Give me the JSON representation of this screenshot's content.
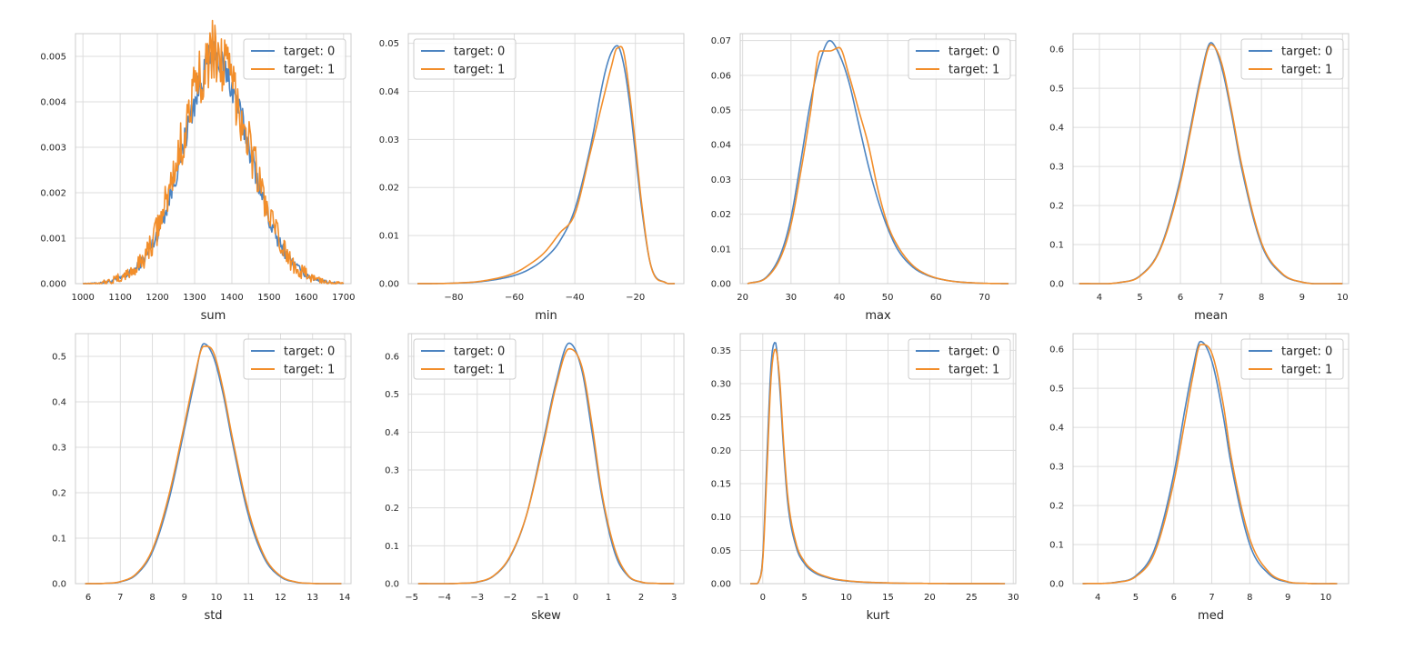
{
  "colors": {
    "target_0": "#4c84c1",
    "target_1": "#f28e2b",
    "grid": "#dddddd",
    "frame": "#cccccc"
  },
  "chart_data": [
    {
      "type": "line",
      "title": "",
      "xlabel": "sum",
      "ylabel": "",
      "grid": true,
      "legend": "upper-right",
      "noisy": true,
      "xlim": [
        980,
        1720
      ],
      "ylim": [
        0,
        0.0055
      ],
      "xticks": [
        1000,
        1100,
        1200,
        1300,
        1400,
        1500,
        1600,
        1700
      ],
      "yticks": [
        0.0,
        0.001,
        0.002,
        0.003,
        0.004,
        0.005
      ],
      "ytick_labels": [
        "0.000",
        "0.001",
        "0.002",
        "0.003",
        "0.004",
        "0.005"
      ],
      "series": [
        {
          "name": "target: 0",
          "x": [
            1000,
            1050,
            1100,
            1150,
            1200,
            1250,
            1300,
            1350,
            1400,
            1450,
            1500,
            1550,
            1600,
            1650,
            1700
          ],
          "y": [
            0,
            2e-05,
            0.00012,
            0.0004,
            0.0011,
            0.0024,
            0.004,
            0.005,
            0.0043,
            0.0029,
            0.0014,
            0.0006,
            0.0002,
            5e-05,
            0
          ]
        },
        {
          "name": "target: 1",
          "x": [
            1000,
            1050,
            1100,
            1150,
            1200,
            1250,
            1300,
            1350,
            1400,
            1450,
            1500,
            1550,
            1600,
            1650,
            1700
          ],
          "y": [
            0,
            2e-05,
            0.00013,
            0.00042,
            0.0012,
            0.0026,
            0.0042,
            0.0051,
            0.0044,
            0.003,
            0.0015,
            0.0006,
            0.0002,
            5e-05,
            0
          ]
        }
      ]
    },
    {
      "type": "line",
      "title": "",
      "xlabel": "min",
      "ylabel": "",
      "grid": true,
      "legend": "upper-left",
      "noisy": false,
      "xlim": [
        -95,
        -4
      ],
      "ylim": [
        0,
        0.052
      ],
      "xticks": [
        -80,
        -60,
        -40,
        -20
      ],
      "yticks": [
        0.0,
        0.01,
        0.02,
        0.03,
        0.04,
        0.05
      ],
      "ytick_labels": [
        "0.00",
        "0.01",
        "0.02",
        "0.03",
        "0.04",
        "0.05"
      ],
      "series": [
        {
          "name": "target: 0",
          "x": [
            -92,
            -80,
            -70,
            -60,
            -55,
            -50,
            -45,
            -40,
            -35,
            -30,
            -28,
            -26,
            -24,
            -22,
            -20,
            -18,
            -15,
            -10,
            -7
          ],
          "y": [
            0,
            0.0001,
            0.0005,
            0.0017,
            0.003,
            0.0052,
            0.0088,
            0.0155,
            0.028,
            0.044,
            0.048,
            0.0495,
            0.046,
            0.038,
            0.027,
            0.016,
            0.004,
            0.0002,
            0
          ]
        },
        {
          "name": "target: 1",
          "x": [
            -92,
            -80,
            -70,
            -60,
            -55,
            -50,
            -45,
            -40,
            -35,
            -30,
            -28,
            -26,
            -24,
            -22,
            -20,
            -18,
            -15,
            -10,
            -7
          ],
          "y": [
            0,
            0.0001,
            0.0006,
            0.0022,
            0.004,
            0.0065,
            0.0105,
            0.0145,
            0.027,
            0.04,
            0.045,
            0.049,
            0.0485,
            0.04,
            0.029,
            0.017,
            0.004,
            0.0002,
            0
          ]
        }
      ]
    },
    {
      "type": "line",
      "title": "",
      "xlabel": "max",
      "ylabel": "",
      "grid": true,
      "legend": "upper-right",
      "noisy": false,
      "xlim": [
        19.5,
        76.5
      ],
      "ylim": [
        0,
        0.072
      ],
      "xticks": [
        20,
        30,
        40,
        50,
        60,
        70
      ],
      "yticks": [
        0.0,
        0.01,
        0.02,
        0.03,
        0.04,
        0.05,
        0.06,
        0.07
      ],
      "ytick_labels": [
        "0.00",
        "0.01",
        "0.02",
        "0.03",
        "0.04",
        "0.05",
        "0.06",
        "0.07"
      ],
      "series": [
        {
          "name": "target: 0",
          "x": [
            21,
            25,
            28,
            30,
            32,
            34,
            36,
            38,
            40,
            42,
            44,
            46,
            48,
            50,
            52,
            55,
            58,
            62,
            68,
            75
          ],
          "y": [
            0,
            0.002,
            0.009,
            0.019,
            0.035,
            0.052,
            0.064,
            0.07,
            0.066,
            0.058,
            0.046,
            0.034,
            0.024,
            0.016,
            0.01,
            0.005,
            0.0025,
            0.001,
            0.0002,
            0
          ]
        },
        {
          "name": "target: 1",
          "x": [
            21,
            25,
            28,
            30,
            32,
            34,
            36,
            38,
            40,
            42,
            44,
            46,
            48,
            50,
            52,
            55,
            58,
            62,
            68,
            75
          ],
          "y": [
            0,
            0.0018,
            0.008,
            0.017,
            0.032,
            0.049,
            0.067,
            0.067,
            0.068,
            0.06,
            0.05,
            0.04,
            0.027,
            0.017,
            0.011,
            0.0055,
            0.0027,
            0.001,
            0.0002,
            0
          ]
        }
      ]
    },
    {
      "type": "line",
      "title": "",
      "xlabel": "mean",
      "ylabel": "",
      "grid": true,
      "legend": "upper-right",
      "noisy": false,
      "xlim": [
        3.35,
        10.15
      ],
      "ylim": [
        0,
        0.64
      ],
      "xticks": [
        4,
        5,
        6,
        7,
        8,
        9,
        10
      ],
      "yticks": [
        0.0,
        0.1,
        0.2,
        0.3,
        0.4,
        0.5,
        0.6
      ],
      "ytick_labels": [
        "0.0",
        "0.1",
        "0.2",
        "0.3",
        "0.4",
        "0.5",
        "0.6"
      ],
      "series": [
        {
          "name": "target: 0",
          "x": [
            3.5,
            4.5,
            5.0,
            5.5,
            6.0,
            6.25,
            6.5,
            6.75,
            7.0,
            7.25,
            7.5,
            8.0,
            8.5,
            9.0,
            10.0
          ],
          "y": [
            0,
            0.003,
            0.02,
            0.09,
            0.27,
            0.4,
            0.53,
            0.617,
            0.56,
            0.44,
            0.3,
            0.1,
            0.025,
            0.004,
            0
          ]
        },
        {
          "name": "target: 1",
          "x": [
            3.5,
            4.5,
            5.0,
            5.5,
            6.0,
            6.25,
            6.5,
            6.75,
            7.0,
            7.25,
            7.5,
            8.0,
            8.5,
            9.0,
            10.0
          ],
          "y": [
            0,
            0.003,
            0.019,
            0.087,
            0.26,
            0.39,
            0.52,
            0.612,
            0.57,
            0.45,
            0.31,
            0.105,
            0.027,
            0.004,
            0
          ]
        }
      ]
    },
    {
      "type": "line",
      "title": "",
      "xlabel": "std",
      "ylabel": "",
      "grid": true,
      "legend": "upper-right",
      "noisy": false,
      "xlim": [
        5.6,
        14.2
      ],
      "ylim": [
        0,
        0.55
      ],
      "xticks": [
        6,
        7,
        8,
        9,
        10,
        11,
        12,
        13,
        14
      ],
      "yticks": [
        0.0,
        0.1,
        0.2,
        0.3,
        0.4,
        0.5
      ],
      "ytick_labels": [
        "0.0",
        "0.1",
        "0.2",
        "0.3",
        "0.4",
        "0.5"
      ],
      "series": [
        {
          "name": "target: 0",
          "x": [
            5.9,
            6.5,
            7.0,
            7.5,
            8.0,
            8.5,
            9.0,
            9.3,
            9.6,
            9.9,
            10.2,
            10.5,
            11.0,
            11.5,
            12.0,
            12.5,
            13.0,
            13.9
          ],
          "y": [
            0,
            0.0005,
            0.004,
            0.02,
            0.07,
            0.18,
            0.34,
            0.44,
            0.528,
            0.5,
            0.42,
            0.31,
            0.15,
            0.055,
            0.015,
            0.003,
            0.0004,
            0
          ]
        },
        {
          "name": "target: 1",
          "x": [
            5.9,
            6.5,
            7.0,
            7.5,
            8.0,
            8.5,
            9.0,
            9.3,
            9.6,
            9.9,
            10.2,
            10.5,
            11.0,
            11.5,
            12.0,
            12.5,
            13.0,
            13.9
          ],
          "y": [
            0,
            0.0006,
            0.0045,
            0.022,
            0.075,
            0.19,
            0.35,
            0.45,
            0.522,
            0.51,
            0.43,
            0.32,
            0.16,
            0.06,
            0.017,
            0.0035,
            0.0005,
            0
          ]
        }
      ]
    },
    {
      "type": "line",
      "title": "",
      "xlabel": "skew",
      "ylabel": "",
      "grid": true,
      "legend": "upper-left",
      "noisy": false,
      "xlim": [
        -5.1,
        3.3
      ],
      "ylim": [
        0,
        0.66
      ],
      "xticks": [
        -5,
        -4,
        -3,
        -2,
        -1,
        0,
        1,
        2,
        3
      ],
      "xtick_labels": [
        "−5",
        "−4",
        "−3",
        "−2",
        "−1",
        "0",
        "1",
        "2",
        "3"
      ],
      "yticks": [
        0.0,
        0.1,
        0.2,
        0.3,
        0.4,
        0.5,
        0.6
      ],
      "ytick_labels": [
        "0.0",
        "0.1",
        "0.2",
        "0.3",
        "0.4",
        "0.5",
        "0.6"
      ],
      "series": [
        {
          "name": "target: 0",
          "x": [
            -4.8,
            -3.5,
            -3.0,
            -2.5,
            -2.0,
            -1.5,
            -1.0,
            -0.6,
            -0.2,
            0.2,
            0.5,
            0.8,
            1.2,
            1.6,
            2.0,
            2.5,
            3.0
          ],
          "y": [
            0,
            0.0008,
            0.004,
            0.02,
            0.07,
            0.18,
            0.37,
            0.53,
            0.635,
            0.56,
            0.4,
            0.23,
            0.08,
            0.02,
            0.004,
            0.0005,
            0
          ]
        },
        {
          "name": "target: 1",
          "x": [
            -4.8,
            -3.5,
            -3.0,
            -2.5,
            -2.0,
            -1.5,
            -1.0,
            -0.6,
            -0.2,
            0.2,
            0.5,
            0.8,
            1.2,
            1.6,
            2.0,
            2.5,
            3.0
          ],
          "y": [
            0,
            0.0009,
            0.0045,
            0.021,
            0.072,
            0.18,
            0.36,
            0.52,
            0.62,
            0.57,
            0.42,
            0.24,
            0.09,
            0.022,
            0.0045,
            0.0006,
            0
          ]
        }
      ]
    },
    {
      "type": "line",
      "title": "",
      "xlabel": "kurt",
      "ylabel": "",
      "grid": true,
      "legend": "upper-right",
      "noisy": false,
      "xlim": [
        -2.7,
        30.3
      ],
      "ylim": [
        0,
        0.375
      ],
      "xticks": [
        0,
        5,
        10,
        15,
        20,
        25,
        30
      ],
      "yticks": [
        0.0,
        0.05,
        0.1,
        0.15,
        0.2,
        0.25,
        0.3,
        0.35
      ],
      "ytick_labels": [
        "0.00",
        "0.05",
        "0.10",
        "0.15",
        "0.20",
        "0.25",
        "0.30",
        "0.35"
      ],
      "series": [
        {
          "name": "target: 0",
          "x": [
            -1.5,
            -0.5,
            0,
            0.5,
            1.0,
            1.5,
            2.0,
            2.5,
            3.0,
            4.0,
            5.0,
            6.0,
            8.0,
            10.0,
            15.0,
            20.0,
            29.0
          ],
          "y": [
            0,
            0.003,
            0.04,
            0.19,
            0.33,
            0.362,
            0.3,
            0.2,
            0.12,
            0.055,
            0.03,
            0.018,
            0.008,
            0.004,
            0.001,
            0.0003,
            0
          ]
        },
        {
          "name": "target: 1",
          "x": [
            -1.5,
            -0.5,
            0,
            0.5,
            1.0,
            1.5,
            2.0,
            2.5,
            3.0,
            4.0,
            5.0,
            6.0,
            8.0,
            10.0,
            15.0,
            20.0,
            29.0
          ],
          "y": [
            0,
            0.003,
            0.035,
            0.17,
            0.31,
            0.352,
            0.31,
            0.21,
            0.13,
            0.06,
            0.033,
            0.02,
            0.009,
            0.0045,
            0.0011,
            0.0003,
            0
          ]
        }
      ]
    },
    {
      "type": "line",
      "title": "",
      "xlabel": "med",
      "ylabel": "",
      "grid": true,
      "legend": "upper-right",
      "noisy": false,
      "xlim": [
        3.35,
        10.6
      ],
      "ylim": [
        0,
        0.64
      ],
      "xticks": [
        4,
        5,
        6,
        7,
        8,
        9,
        10
      ],
      "yticks": [
        0.0,
        0.1,
        0.2,
        0.3,
        0.4,
        0.5,
        0.6
      ],
      "ytick_labels": [
        "0.0",
        "0.1",
        "0.2",
        "0.3",
        "0.4",
        "0.5",
        "0.6"
      ],
      "series": [
        {
          "name": "target: 0",
          "x": [
            3.6,
            4.5,
            5.0,
            5.5,
            6.0,
            6.3,
            6.5,
            6.7,
            7.0,
            7.3,
            7.5,
            8.0,
            8.5,
            9.0,
            9.5,
            10.3
          ],
          "y": [
            0,
            0.004,
            0.02,
            0.09,
            0.28,
            0.45,
            0.55,
            0.62,
            0.57,
            0.43,
            0.31,
            0.1,
            0.025,
            0.004,
            0.0006,
            0
          ]
        },
        {
          "name": "target: 1",
          "x": [
            3.6,
            4.5,
            5.0,
            5.5,
            6.0,
            6.3,
            6.5,
            6.7,
            7.0,
            7.3,
            7.5,
            8.0,
            8.5,
            9.0,
            9.5,
            10.3
          ],
          "y": [
            0,
            0.0035,
            0.018,
            0.08,
            0.26,
            0.42,
            0.53,
            0.612,
            0.59,
            0.46,
            0.33,
            0.115,
            0.03,
            0.005,
            0.0007,
            0
          ]
        }
      ]
    }
  ]
}
